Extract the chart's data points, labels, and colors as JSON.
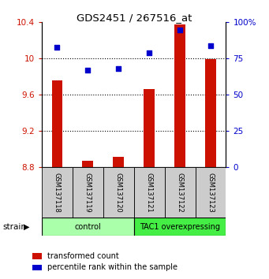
{
  "title": "GDS2451 / 267516_at",
  "samples": [
    "GSM137118",
    "GSM137119",
    "GSM137120",
    "GSM137121",
    "GSM137122",
    "GSM137123"
  ],
  "transformed_counts": [
    9.76,
    8.87,
    8.92,
    9.66,
    10.38,
    9.99
  ],
  "percentile_ranks": [
    83,
    67,
    68,
    79,
    95,
    84
  ],
  "ylim_left": [
    8.8,
    10.4
  ],
  "ylim_right": [
    0,
    100
  ],
  "yticks_left": [
    8.8,
    9.2,
    9.6,
    10.0,
    10.4
  ],
  "yticks_right": [
    0,
    25,
    50,
    75,
    100
  ],
  "ytick_labels_left": [
    "8.8",
    "9.2",
    "9.6",
    "10",
    "10.4"
  ],
  "ytick_labels_right": [
    "0",
    "25",
    "50",
    "75",
    "100%"
  ],
  "groups": [
    {
      "label": "control",
      "indices": [
        0,
        1,
        2
      ],
      "color": "#aaffaa"
    },
    {
      "label": "TAC1 overexpressing",
      "indices": [
        3,
        4,
        5
      ],
      "color": "#44ee44"
    }
  ],
  "bar_color": "#cc1100",
  "dot_color": "#0000cc",
  "bar_width": 0.35,
  "bar_bottom": 8.8,
  "tick_label_color_left": "#cc1100",
  "tick_label_color_right": "#0000cc",
  "strain_label": "strain",
  "legend_bar_label": "transformed count",
  "legend_dot_label": "percentile rank within the sample"
}
